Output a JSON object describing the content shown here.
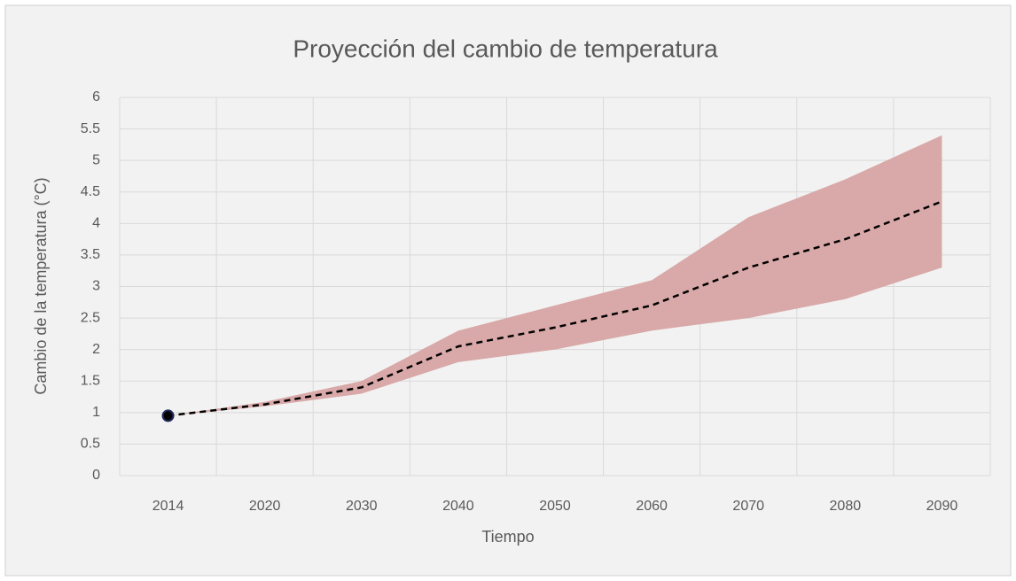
{
  "chart_data": {
    "type": "line",
    "title": "Proyección del cambio de temperatura",
    "xlabel": "Tiempo",
    "ylabel": "Cambio de la temperatura (°C)",
    "categories": [
      "2014",
      "2020",
      "2030",
      "2040",
      "2050",
      "2060",
      "2070",
      "2080",
      "2090"
    ],
    "series": [
      {
        "color": "#000000",
        "values": [
          0.95,
          1.13,
          1.4,
          2.05,
          2.35,
          2.7,
          3.3,
          3.75,
          4.35
        ]
      }
    ],
    "band": {
      "color": "#d9a8a8",
      "upper": [
        0.95,
        1.17,
        1.5,
        2.3,
        2.7,
        3.1,
        4.1,
        4.7,
        5.4
      ],
      "lower": [
        0.95,
        1.1,
        1.3,
        1.8,
        2.0,
        2.3,
        2.5,
        2.8,
        3.3
      ]
    },
    "ylim": [
      0,
      6
    ],
    "yticks": [
      0,
      0.5,
      1,
      1.5,
      2,
      2.5,
      3,
      3.5,
      4,
      4.5,
      5,
      5.5,
      6
    ],
    "grid": true
  }
}
